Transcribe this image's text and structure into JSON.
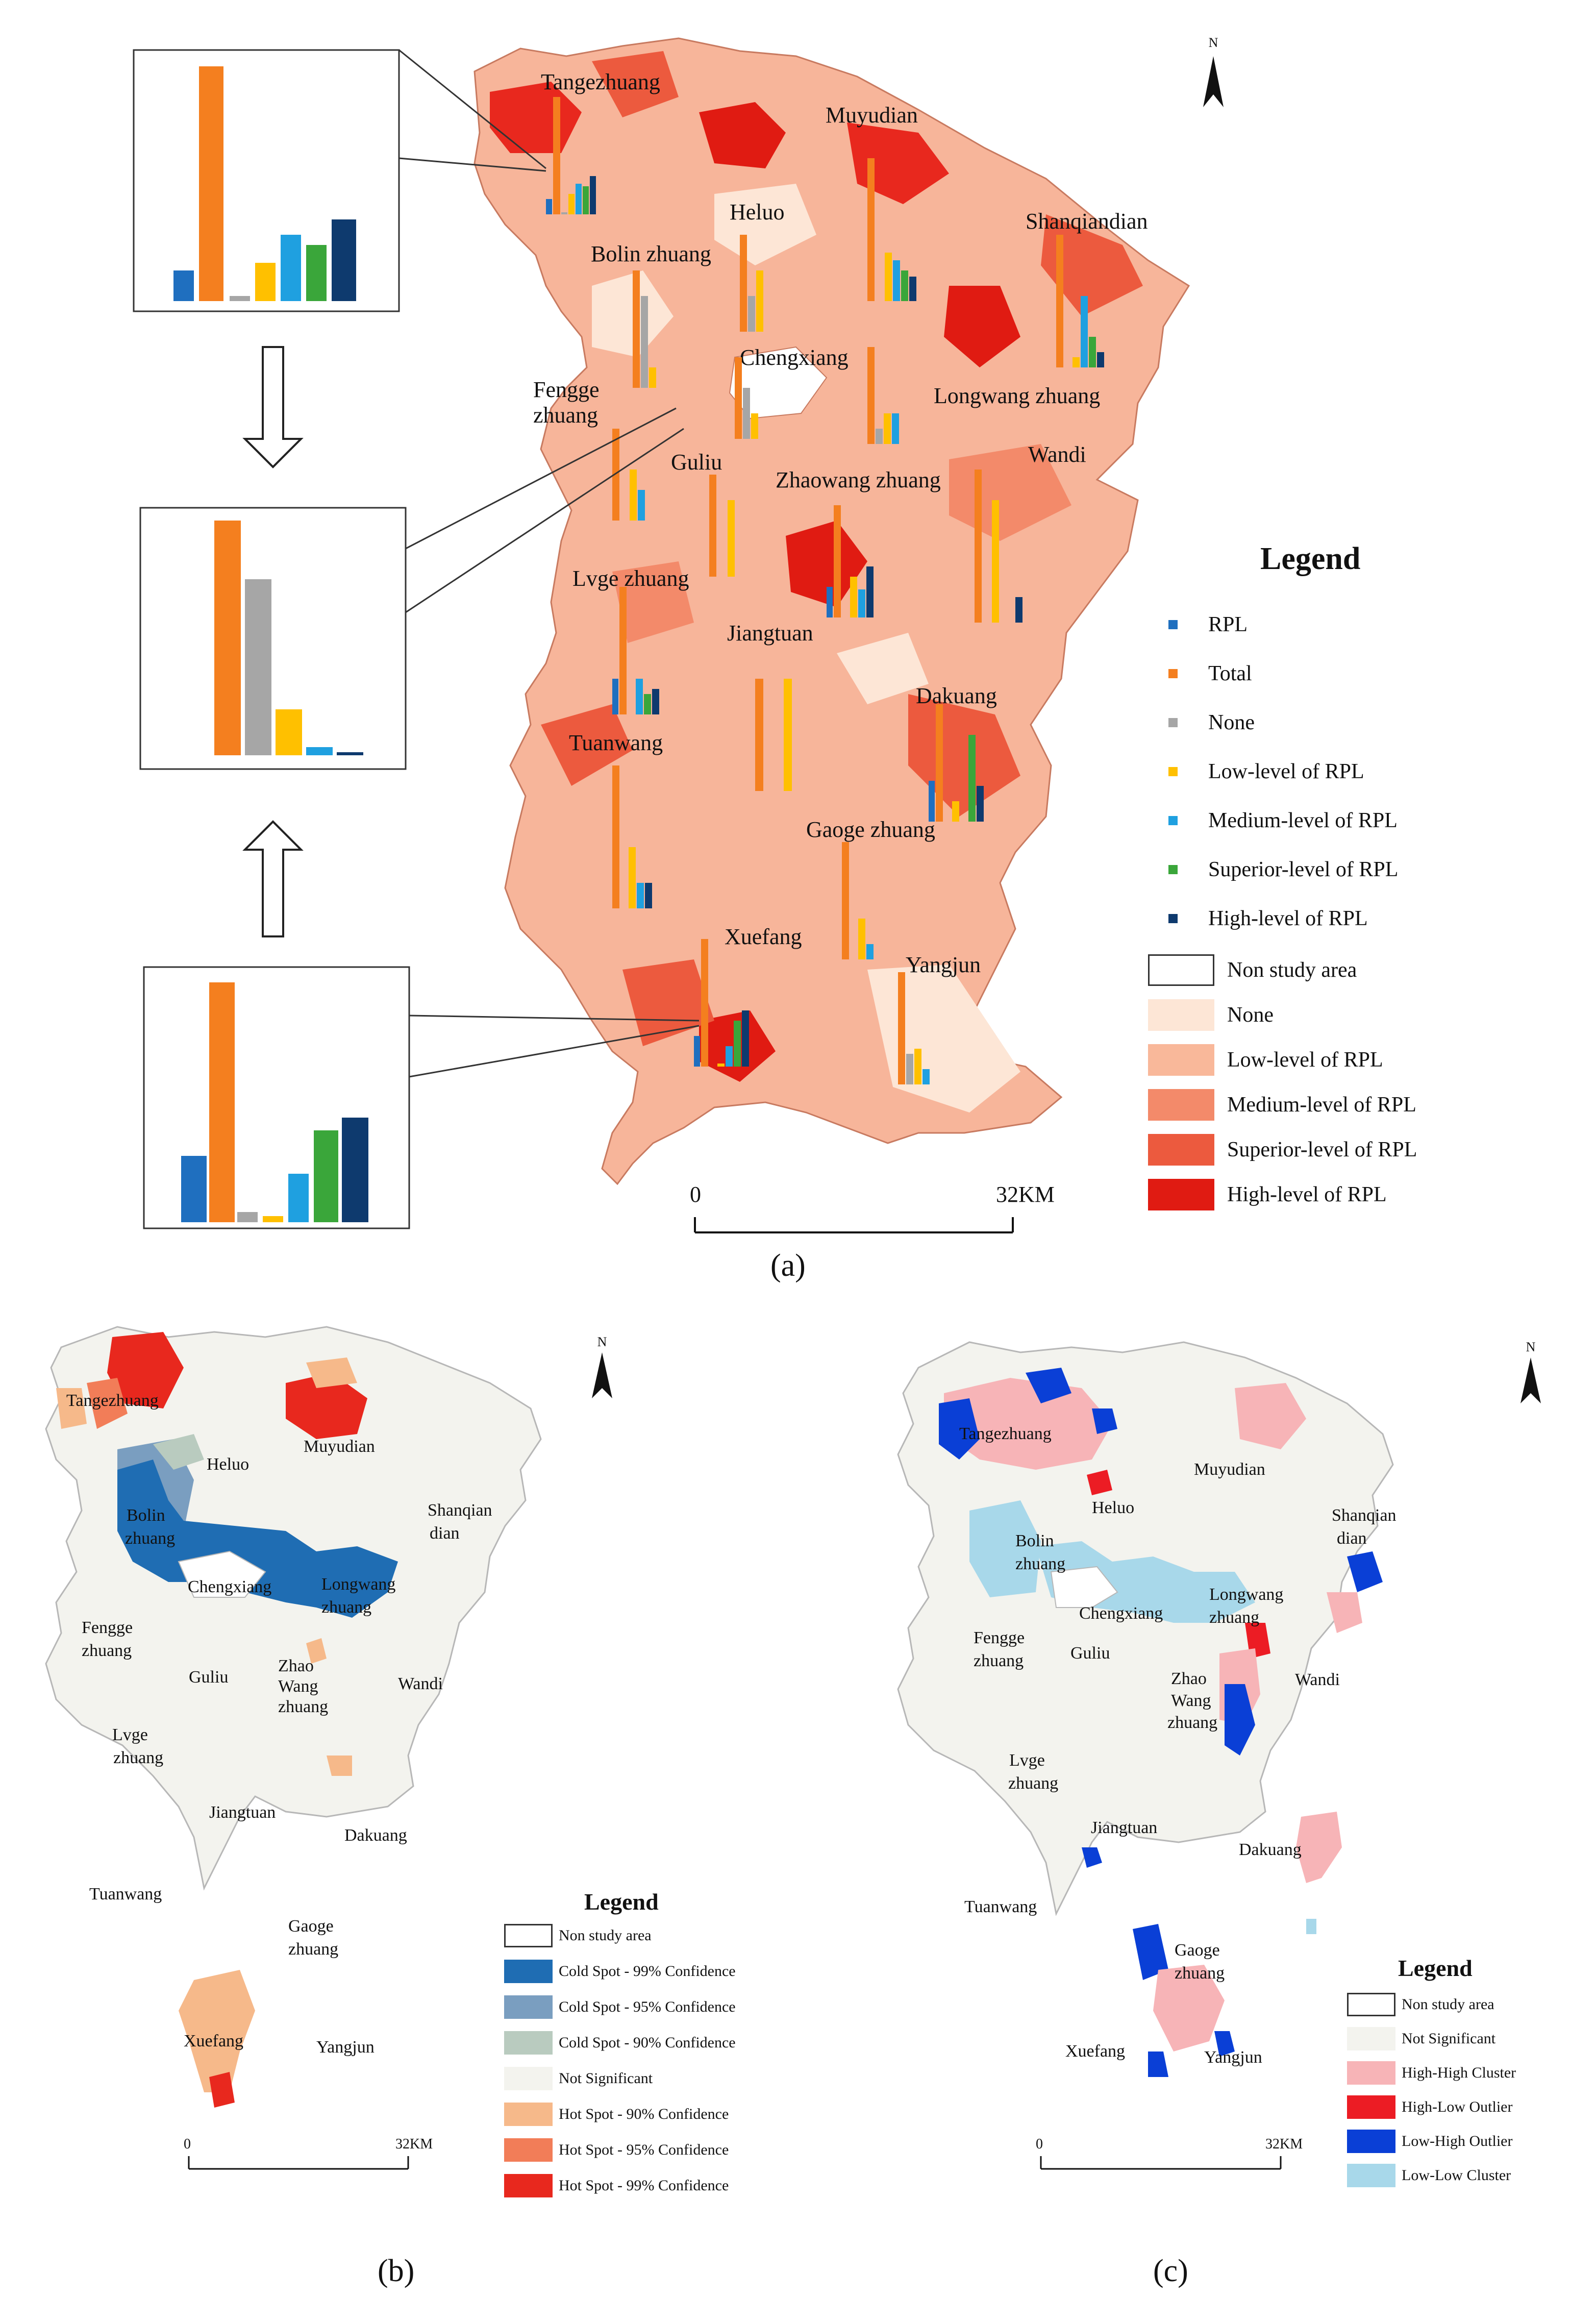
{
  "panels": {
    "a": {
      "label": "(a)",
      "north": "N",
      "scale_zero": "0",
      "scale_end": "32KM",
      "towns": [
        "Tangezhuang",
        "Muyudian",
        "Heluo",
        "Shanqiandian",
        "Bolin zhuang",
        "Chengxiang",
        "Fengge",
        "zhuang",
        "Longwang zhuang",
        "Wandi",
        "Guliu",
        "Zhaowang zhuang",
        "Lvge zhuang",
        "Jiangtuan",
        "Dakuang",
        "Tuanwang",
        "Gaoge zhuang",
        "Xuefang",
        "Yangjun"
      ],
      "legend": {
        "title": "Legend",
        "bar_items": [
          {
            "label": "RPL",
            "color": "#1f6fbf"
          },
          {
            "label": "Total",
            "color": "#f47f1f"
          },
          {
            "label": "None",
            "color": "#a6a6a6"
          },
          {
            "label": "Low-level of RPL",
            "color": "#ffc000"
          },
          {
            "label": "Medium-level of RPL",
            "color": "#1fa0e0"
          },
          {
            "label": "Superior-level of RPL",
            "color": "#3aa63a"
          },
          {
            "label": "High-level of RPL",
            "color": "#0e3a6e"
          }
        ],
        "area_items": [
          {
            "label": "Non study area",
            "color": "#ffffff"
          },
          {
            "label": "None",
            "color": "#fde6d6"
          },
          {
            "label": "Low-level of RPL",
            "color": "#f9b89a"
          },
          {
            "label": "Medium-level of RPL",
            "color": "#f38a6a"
          },
          {
            "label": "Superior-level of RPL",
            "color": "#ec5a3e"
          },
          {
            "label": "High-level of RPL",
            "color": "#e01b12"
          }
        ]
      }
    },
    "b": {
      "label": "(b)",
      "north": "N",
      "scale_zero": "0",
      "scale_end": "32KM",
      "towns": [
        "Tangezhuang",
        "Heluo",
        "Muyudian",
        "Bolin",
        "zhuang",
        "Shanqian",
        "dian",
        "Chengxiang",
        "Longwang",
        "zhuang",
        "Fengge",
        "zhuang",
        "Zhao",
        "Wang",
        "zhuang",
        "Guliu",
        "Wandi",
        "Lvge",
        "zhuang",
        "Jiangtuan",
        "Dakuang",
        "Tuanwang",
        "Gaoge",
        "zhuang",
        "Xuefang",
        "Yangjun"
      ],
      "legend": {
        "title": "Legend",
        "items": [
          {
            "label": "Non study area",
            "color": "#ffffff"
          },
          {
            "label": "Cold Spot - 99% Confidence",
            "color": "#1f6db3"
          },
          {
            "label": "Cold Spot - 95% Confidence",
            "color": "#7a9ec0"
          },
          {
            "label": "Cold Spot - 90% Confidence",
            "color": "#b9cbbf"
          },
          {
            "label": "Not Significant",
            "color": "#f3f3ee"
          },
          {
            "label": "Hot Spot - 90% Confidence",
            "color": "#f6b98a"
          },
          {
            "label": "Hot Spot - 95% Confidence",
            "color": "#f27d58"
          },
          {
            "label": "Hot Spot - 99% Confidence",
            "color": "#e8281e"
          }
        ]
      }
    },
    "c": {
      "label": "(c)",
      "north": "N",
      "scale_zero": "0",
      "scale_end": "32KM",
      "towns": [
        "Tangezhuang",
        "Muyudian",
        "Heluo",
        "Shanqian",
        "dian",
        "Bolin",
        "zhuang",
        "Longwang",
        "zhuang",
        "Chengxiang",
        "Fengge",
        "zhuang",
        "Guliu",
        "Zhao",
        "Wang",
        "zhuang",
        "Wandi",
        "Lvge",
        "zhuang",
        "Jiangtuan",
        "Dakuang",
        "Tuanwang",
        "Gaoge",
        "zhuang",
        "Xuefang",
        "Yangjun"
      ],
      "legend": {
        "title": "Legend",
        "items": [
          {
            "label": "Non study area",
            "color": "#ffffff"
          },
          {
            "label": "Not Significant",
            "color": "#f3f3ee"
          },
          {
            "label": "High-High Cluster",
            "color": "#f7b4b7"
          },
          {
            "label": "High-Low Outlier",
            "color": "#ec1c24"
          },
          {
            "label": "Low-High Outlier",
            "color": "#0a3fd6"
          },
          {
            "label": "Low-Low Cluster",
            "color": "#a8d8ea"
          }
        ]
      }
    }
  }
}
